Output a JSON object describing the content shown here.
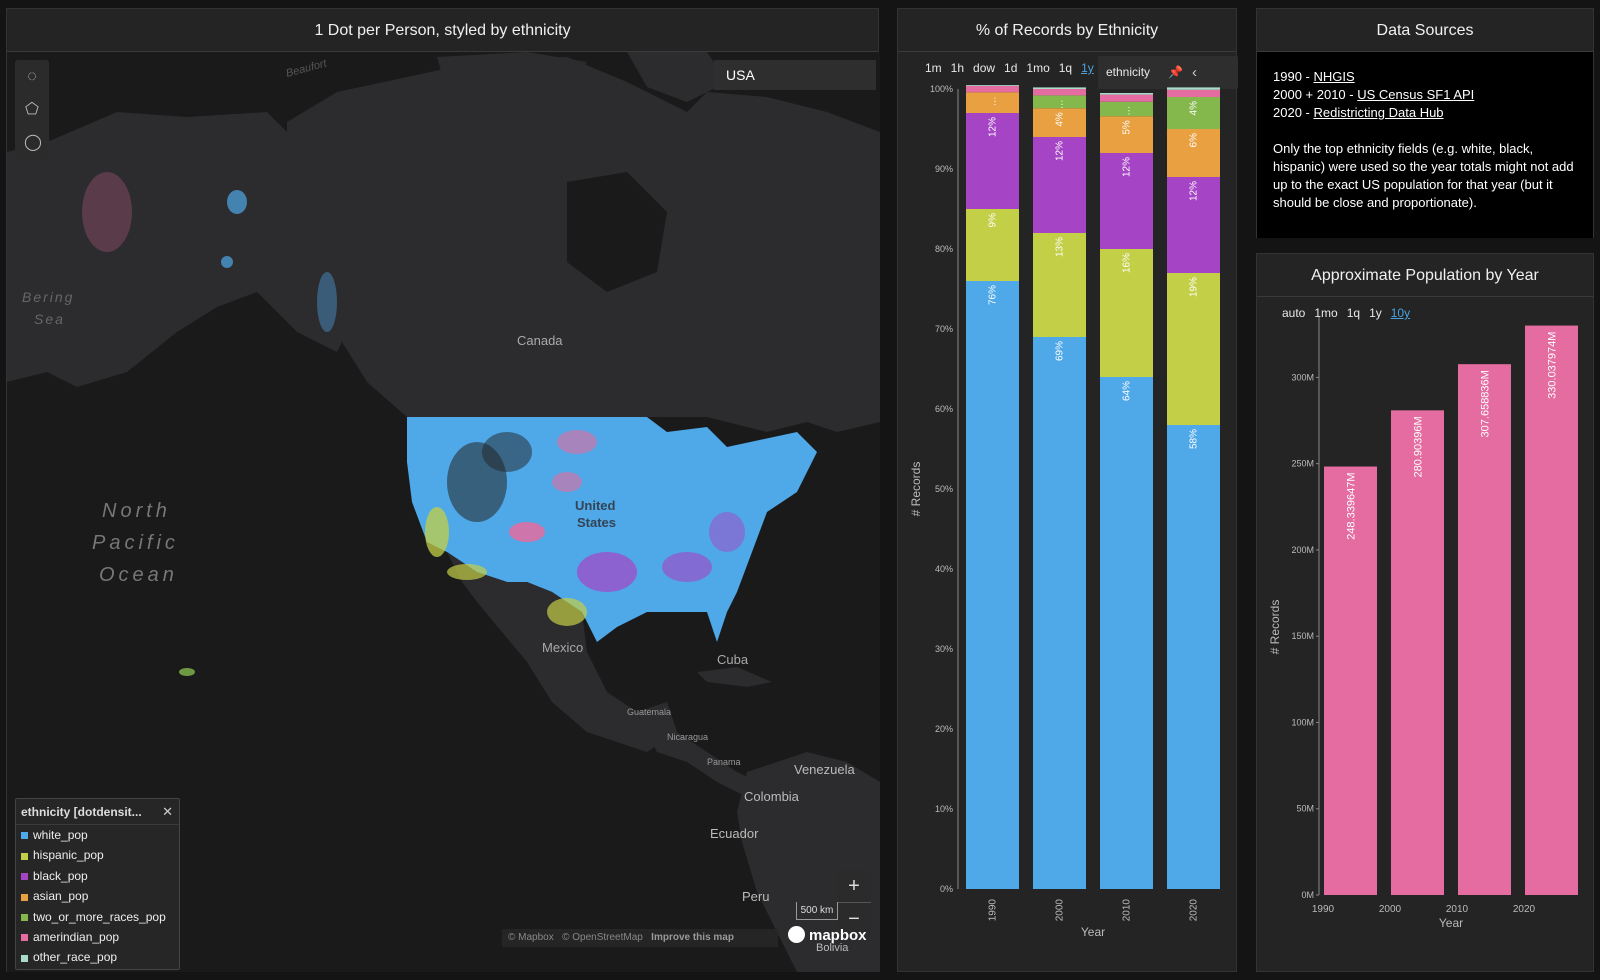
{
  "map_panel": {
    "title": "1 Dot per Person, styled by ethnicity",
    "search_value": "USA",
    "labels": {
      "beaufort": "Beaufort",
      "bering": "Bering",
      "sea": "Sea",
      "canada": "Canada",
      "us1": "United",
      "us2": "States",
      "npo1": "North",
      "npo2": "Pacific",
      "npo3": "Ocean",
      "mexico": "Mexico",
      "cuba": "Cuba",
      "guatemala": "Guatemala",
      "nicaragua": "Nicaragua",
      "panama": "Panama",
      "venezuela": "Venezuela",
      "colombia": "Colombia",
      "ecuador": "Ecuador",
      "peru": "Peru",
      "bolivia": "Bolivia"
    },
    "legend": {
      "title": "ethnicity [dotdensit...",
      "close": "✕",
      "items": [
        {
          "label": "white_pop",
          "color": "#4fa8e8"
        },
        {
          "label": "hispanic_pop",
          "color": "#c3cf47"
        },
        {
          "label": "black_pop",
          "color": "#a545c5"
        },
        {
          "label": "asian_pop",
          "color": "#e8a040"
        },
        {
          "label": "two_or_more_races_pop",
          "color": "#84b84c"
        },
        {
          "label": "amerindian_pop",
          "color": "#e46ca0"
        },
        {
          "label": "other_race_pop",
          "color": "#a8dcc8"
        }
      ]
    },
    "zoom_in": "+",
    "zoom_out": "−",
    "scale": "500 km",
    "attribution": {
      "mapbox": "© Mapbox",
      "osm": "© OpenStreetMap",
      "improve": "Improve this map"
    },
    "logo": "mapbox"
  },
  "pct_panel": {
    "title": "% of Records by Ethnicity",
    "time_buttons": [
      "1m",
      "1h",
      "dow",
      "1d",
      "1mo",
      "1q",
      "1y"
    ],
    "active_time": "1y",
    "pill_label": "ethnicity",
    "pin_icon": "📌",
    "chevron": "‹"
  },
  "sources_panel": {
    "title": "Data Sources",
    "lines": [
      {
        "prefix": "1990 - ",
        "link": "NHGIS"
      },
      {
        "prefix": "2000 + 2010 - ",
        "link": "US Census SF1 API"
      },
      {
        "prefix": "2020 - ",
        "link": "Redistricting Data Hub"
      }
    ],
    "note": "Only the top ethnicity fields (e.g. white, black, hispanic) were used so the year totals might not add up to the exact US population for that year (but it should be close and proportionate)."
  },
  "pop_panel": {
    "title": "Approximate Population by Year",
    "time_buttons": [
      "auto",
      "1mo",
      "1q",
      "1y",
      "10y"
    ],
    "active_time": "10y"
  },
  "chart_data": [
    {
      "type": "bar",
      "stacked": true,
      "title": "% of Records by Ethnicity",
      "xlabel": "Year",
      "ylabel": "# Records",
      "categories": [
        "1990",
        "2000",
        "2010",
        "2020"
      ],
      "ylim": [
        0,
        100
      ],
      "yticks": [
        "0%",
        "10%",
        "20%",
        "30%",
        "40%",
        "50%",
        "60%",
        "70%",
        "80%",
        "90%",
        "100%"
      ],
      "series": [
        {
          "name": "white_pop",
          "color": "#4fa8e8",
          "values": [
            76,
            69,
            64,
            58
          ],
          "labels": [
            "76%",
            "69%",
            "64%",
            "58%"
          ]
        },
        {
          "name": "hispanic_pop",
          "color": "#c3cf47",
          "values": [
            9,
            13,
            16,
            19
          ],
          "labels": [
            "9%",
            "13%",
            "16%",
            "19%"
          ]
        },
        {
          "name": "black_pop",
          "color": "#a545c5",
          "values": [
            12,
            12,
            12,
            12
          ],
          "labels": [
            "12%",
            "12%",
            "12%",
            "12%"
          ]
        },
        {
          "name": "asian_pop",
          "color": "#e8a040",
          "values": [
            2.6,
            3.6,
            4.6,
            6
          ],
          "labels": [
            "…",
            "4%",
            "5%",
            "6%"
          ]
        },
        {
          "name": "two_or_more_races_pop",
          "color": "#84b84c",
          "values": [
            0,
            1.6,
            1.8,
            4
          ],
          "labels": [
            "",
            "…",
            "…",
            "4%"
          ]
        },
        {
          "name": "amerindian_pop",
          "color": "#e46ca0",
          "values": [
            0.8,
            0.8,
            0.9,
            0.9
          ],
          "labels": [
            "",
            "",
            "",
            ""
          ]
        },
        {
          "name": "other_race_pop",
          "color": "#a8dcc8",
          "values": [
            0.1,
            0.2,
            0.2,
            0.3
          ],
          "labels": [
            "",
            "",
            "",
            ""
          ]
        }
      ]
    },
    {
      "type": "bar",
      "title": "Approximate Population by Year",
      "xlabel": "Year",
      "ylabel": "# Records",
      "categories": [
        "1990",
        "2000",
        "2010",
        "2020"
      ],
      "values": [
        248.339647,
        280.90396,
        307.658836,
        330.037974
      ],
      "labels": [
        "248.339647M",
        "280.90396M",
        "307.658836M",
        "330.037974M"
      ],
      "color": "#e46ca0",
      "ylim": [
        0,
        335
      ],
      "yticks": [
        {
          "v": 0,
          "t": "0M"
        },
        {
          "v": 50,
          "t": "50M"
        },
        {
          "v": 100,
          "t": "100M"
        },
        {
          "v": 150,
          "t": "150M"
        },
        {
          "v": 200,
          "t": "200M"
        },
        {
          "v": 250,
          "t": "250M"
        },
        {
          "v": 300,
          "t": "300M"
        }
      ]
    }
  ]
}
